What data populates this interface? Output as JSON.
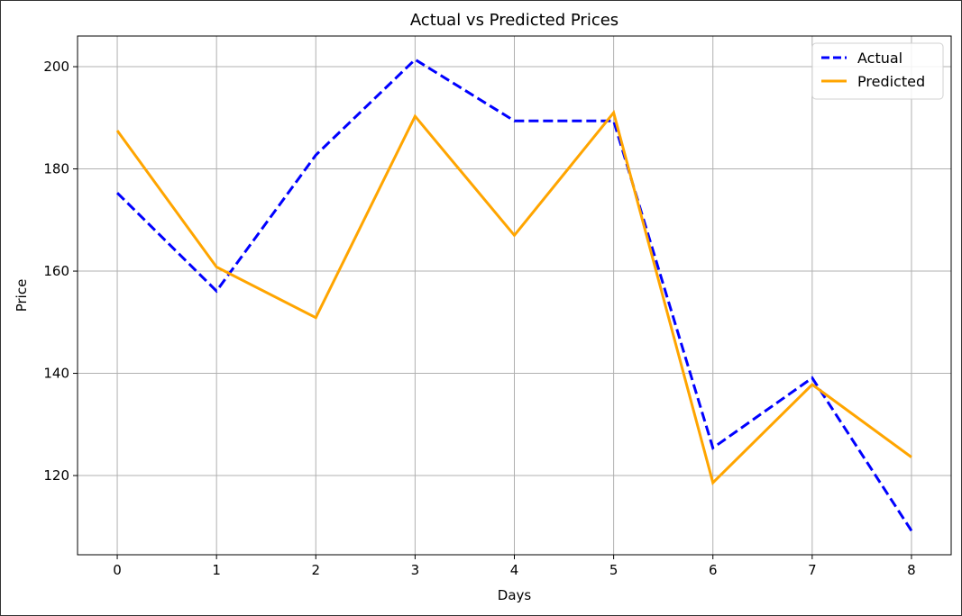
{
  "chart_data": {
    "type": "line",
    "title": "Actual vs Predicted Prices",
    "xlabel": "Days",
    "ylabel": "Price",
    "x": [
      0,
      1,
      2,
      3,
      4,
      5,
      6,
      7,
      8
    ],
    "xticks": [
      "0",
      "1",
      "2",
      "3",
      "4",
      "5",
      "6",
      "7",
      "8"
    ],
    "yticks": [
      "120",
      "140",
      "160",
      "180",
      "200"
    ],
    "xlim": [
      -0.4,
      8.4
    ],
    "ylim": [
      104.5,
      206
    ],
    "grid": true,
    "legend_position": "top-right",
    "series": [
      {
        "name": "Actual",
        "values": [
          175.3,
          156.1,
          182.7,
          201.4,
          189.4,
          189.4,
          125.4,
          139.1,
          109.2
        ],
        "color": "#0000ff",
        "style": "dashed"
      },
      {
        "name": "Predicted",
        "values": [
          187.5,
          160.8,
          150.9,
          190.3,
          167.0,
          191.0,
          118.6,
          137.8,
          123.6
        ],
        "color": "#ffa500",
        "style": "solid"
      }
    ]
  }
}
